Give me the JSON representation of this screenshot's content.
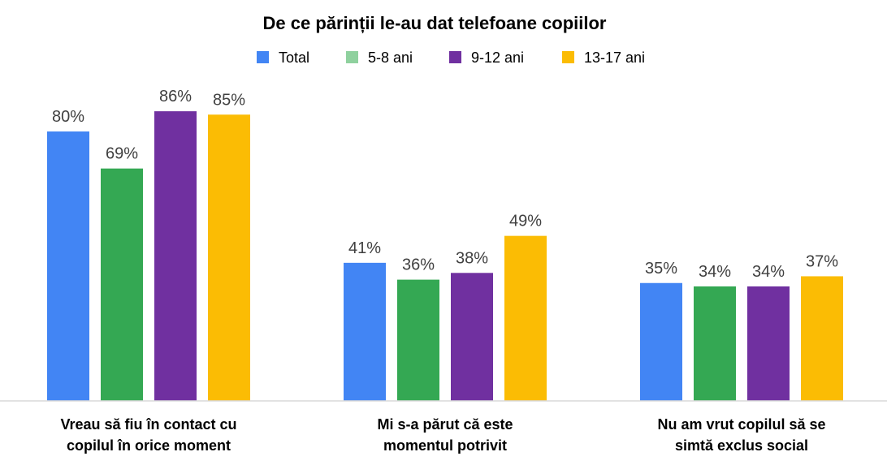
{
  "chart_data": {
    "type": "bar",
    "title": "De ce părinții le-au dat telefoane copiilor",
    "categories": [
      [
        "Vreau să fiu în contact cu",
        "copilul în orice moment"
      ],
      [
        "Mi s-a părut că este",
        "momentul potrivit"
      ],
      [
        "Nu am vrut copilul să se",
        "simtă exclus social"
      ]
    ],
    "series": [
      {
        "name": "Total",
        "values": [
          80,
          41,
          35
        ],
        "labels": [
          "80%",
          "41%",
          "35%"
        ]
      },
      {
        "name": "5-8 ani",
        "values": [
          69,
          36,
          34
        ],
        "labels": [
          "69%",
          "36%",
          "34%"
        ]
      },
      {
        "name": "9-12 ani",
        "values": [
          86,
          38,
          34
        ],
        "labels": [
          "86%",
          "38%",
          "34%"
        ]
      },
      {
        "name": "13-17 ani",
        "values": [
          85,
          49,
          37
        ],
        "labels": [
          "85%",
          "49%",
          "37%"
        ]
      }
    ],
    "colors": {
      "series": [
        "#4285F4",
        "#34A853",
        "#7030A0",
        "#FBBC04"
      ],
      "legend": [
        "#4285F4",
        "#8FD19E",
        "#7030A0",
        "#FBBC04"
      ],
      "axis": "#D9D9D9"
    },
    "ylim": [
      0,
      100
    ],
    "grid": false,
    "legend_position": "top"
  }
}
